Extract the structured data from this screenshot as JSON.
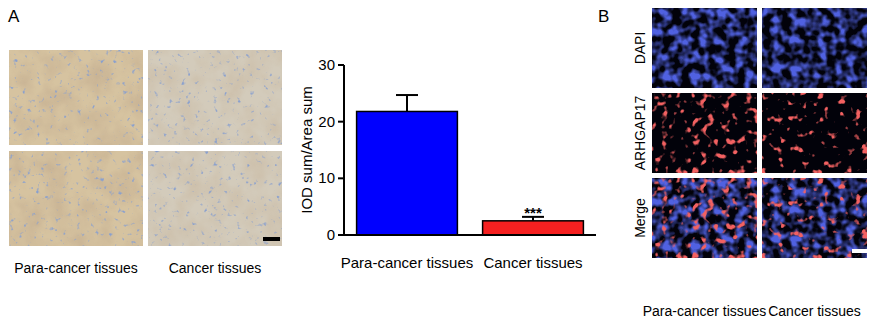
{
  "chart_data": {
    "type": "bar",
    "ylabel": "IOD sum/Area sum",
    "categories": [
      "Para-cancer tissues",
      "Cancer tissues"
    ],
    "values": [
      21.8,
      2.5
    ],
    "errors": [
      2.9,
      0.7
    ],
    "colors": [
      "#0000ff",
      "#f52020"
    ],
    "ylim": [
      0,
      30
    ],
    "yticks": [
      0,
      10,
      20,
      30
    ],
    "grid": false,
    "annotations": [
      {
        "category": "Cancer tissues",
        "text": "***"
      }
    ]
  },
  "figure": {
    "panel_labels": [
      "A",
      "B"
    ],
    "panel_a": {
      "columns": [
        "Para-cancer tissues",
        "Cancer tissues"
      ]
    },
    "panel_b": {
      "rows": [
        "DAPI",
        "ARHGAP17",
        "Merge"
      ],
      "columns": [
        "Para-cancer tissues",
        "Cancer tissues"
      ]
    }
  }
}
